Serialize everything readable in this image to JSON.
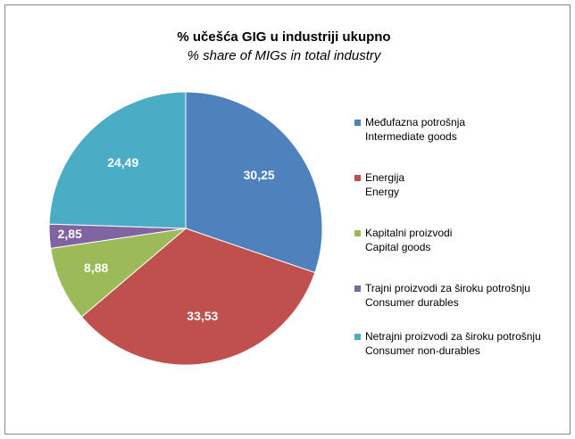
{
  "chart_data": {
    "type": "pie",
    "title": "% učešća GIG u industriji ukupno",
    "subtitle": "% share of MIGs in total industry",
    "categories": [
      "Međufazna potrošnja",
      "Energija",
      "Kapitalni proizvodi",
      "Trajni proizvodi za široku potrošnju",
      "Netrajni proizvodi za široku potrošnju"
    ],
    "categories_en": [
      "Intermediate goods",
      "Energy",
      "Capital goods",
      "Consumer durables",
      "Consumer non-durables"
    ],
    "values": [
      30.25,
      33.53,
      8.88,
      2.85,
      24.49
    ],
    "value_labels": [
      "30,25",
      "33,53",
      "8,88",
      "2,85",
      "24,49"
    ],
    "colors": [
      "#4f81bd",
      "#c0504d",
      "#9bbb59",
      "#8064a2",
      "#4bacc6"
    ],
    "legend": "right"
  }
}
